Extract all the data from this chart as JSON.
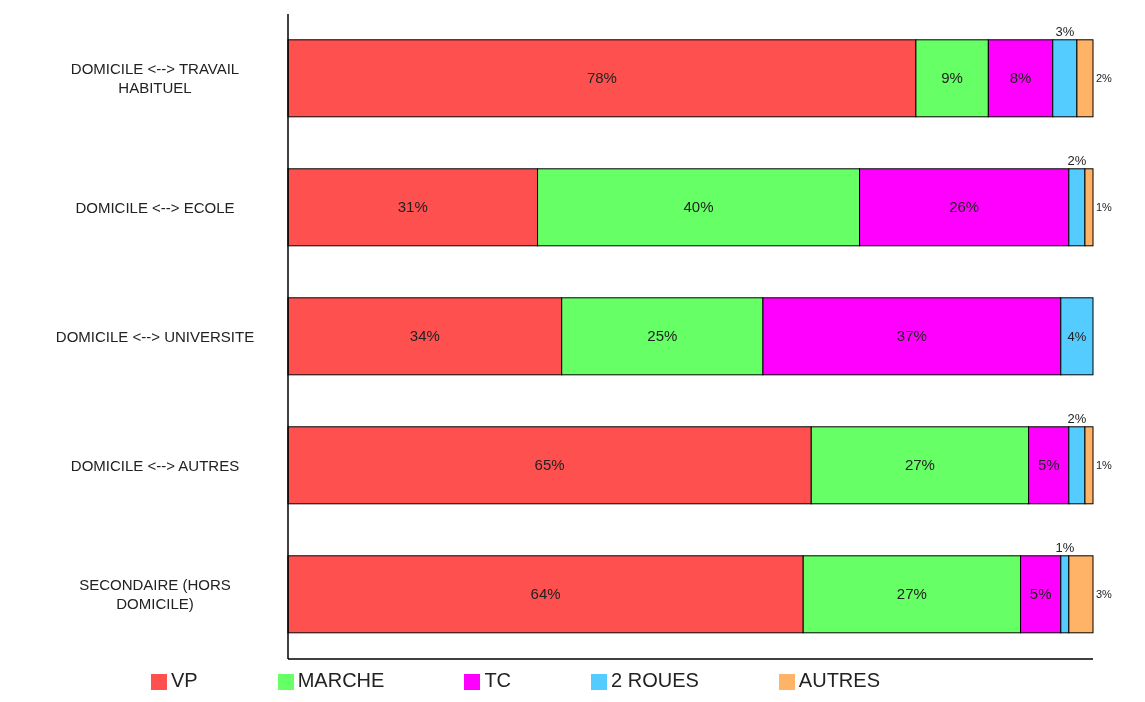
{
  "chart_data": {
    "type": "bar",
    "orientation": "horizontal",
    "stacked": true,
    "categories": [
      "DOMICILE <--> TRAVAIL HABITUEL",
      "DOMICILE <--> ECOLE",
      "DOMICILE <--> UNIVERSITE",
      "DOMICILE <--> AUTRES",
      "SECONDAIRE (HORS DOMICILE)"
    ],
    "series": [
      {
        "name": "VP",
        "color": "#ff5050",
        "values": [
          78,
          31,
          34,
          65,
          64
        ],
        "value_labels": [
          "78%",
          "31%",
          "34%",
          "65%",
          "64%"
        ]
      },
      {
        "name": "MARCHE",
        "color": "#66ff66",
        "values": [
          9,
          40,
          25,
          27,
          27
        ],
        "value_labels": [
          "9%",
          "40%",
          "25%",
          "27%",
          "27%"
        ]
      },
      {
        "name": "TC",
        "color": "#ff00ff",
        "values": [
          8,
          26,
          37,
          5,
          5
        ],
        "value_labels": [
          "8%",
          "26%",
          "37%",
          "5%",
          "5%"
        ]
      },
      {
        "name": "2 ROUES",
        "color": "#55ccff",
        "values": [
          3,
          2,
          4,
          2,
          1
        ],
        "value_labels": [
          "3%",
          "2%",
          "4%",
          "2%",
          "1%"
        ]
      },
      {
        "name": "AUTRES",
        "color": "#ffb366",
        "values": [
          2,
          1,
          null,
          1,
          3
        ],
        "value_labels": [
          "2%",
          "1%",
          null,
          "1%",
          "3%"
        ]
      }
    ],
    "xlim": [
      0,
      100
    ],
    "tick_labels": "y",
    "legend": "bottom"
  }
}
